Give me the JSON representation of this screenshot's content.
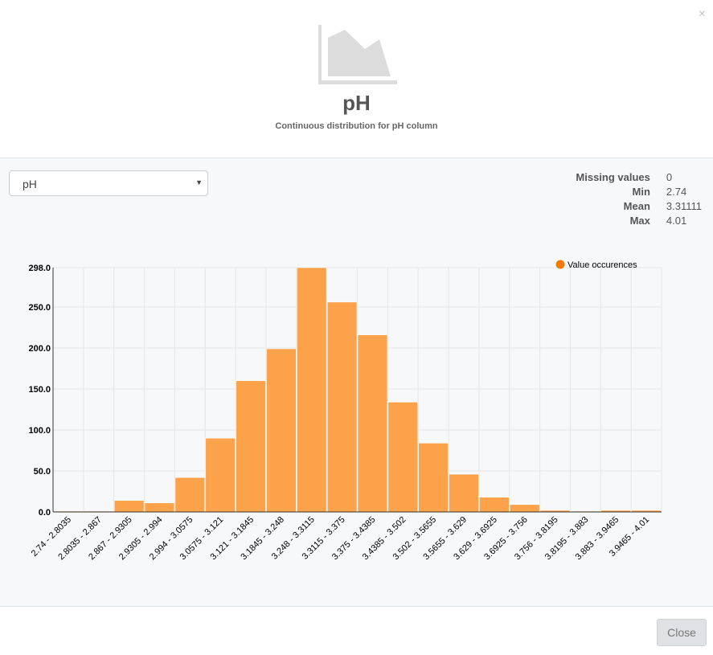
{
  "header": {
    "close_icon": "×",
    "title": "pH",
    "subtitle": "Continuous distribution for pH column"
  },
  "column_select": {
    "value": "pH"
  },
  "stats": [
    {
      "label": "Missing values",
      "value": "0"
    },
    {
      "label": "Min",
      "value": "2.74"
    },
    {
      "label": "Mean",
      "value": "3.31111"
    },
    {
      "label": "Max",
      "value": "4.01"
    }
  ],
  "footer": {
    "close_label": "Close"
  },
  "colors": {
    "bar": "#fba24b",
    "legend_dot": "#f57c00",
    "grid": "#e6e6e6"
  },
  "chart_data": {
    "type": "bar",
    "categories": [
      "2.74 - 2.8035",
      "2.8035 - 2.867",
      "2.867 - 2.9305",
      "2.9305 - 2.994",
      "2.994 - 3.0575",
      "3.0575 - 3.121",
      "3.121 - 3.1845",
      "3.1845 - 3.248",
      "3.248 - 3.3115",
      "3.3115 - 3.375",
      "3.375 - 3.4385",
      "3.4385 - 3.502",
      "3.502 - 3.5655",
      "3.5655 - 3.629",
      "3.629 - 3.6925",
      "3.6925 - 3.756",
      "3.756 - 3.8195",
      "3.8195 - 3.883",
      "3.883 - 3.9465",
      "3.9465 - 4.01"
    ],
    "series": [
      {
        "name": "Value occurences",
        "values": [
          1,
          1,
          14,
          11,
          42,
          90,
          160,
          199,
          298,
          256,
          216,
          134,
          84,
          46,
          18,
          9,
          2,
          1,
          2,
          2
        ]
      }
    ],
    "ylim": [
      0,
      298
    ],
    "yticks": [
      "0.0",
      "50.0",
      "100.0",
      "150.0",
      "200.0",
      "250.0",
      "298.0"
    ],
    "grid": true,
    "legend": "top-right"
  }
}
